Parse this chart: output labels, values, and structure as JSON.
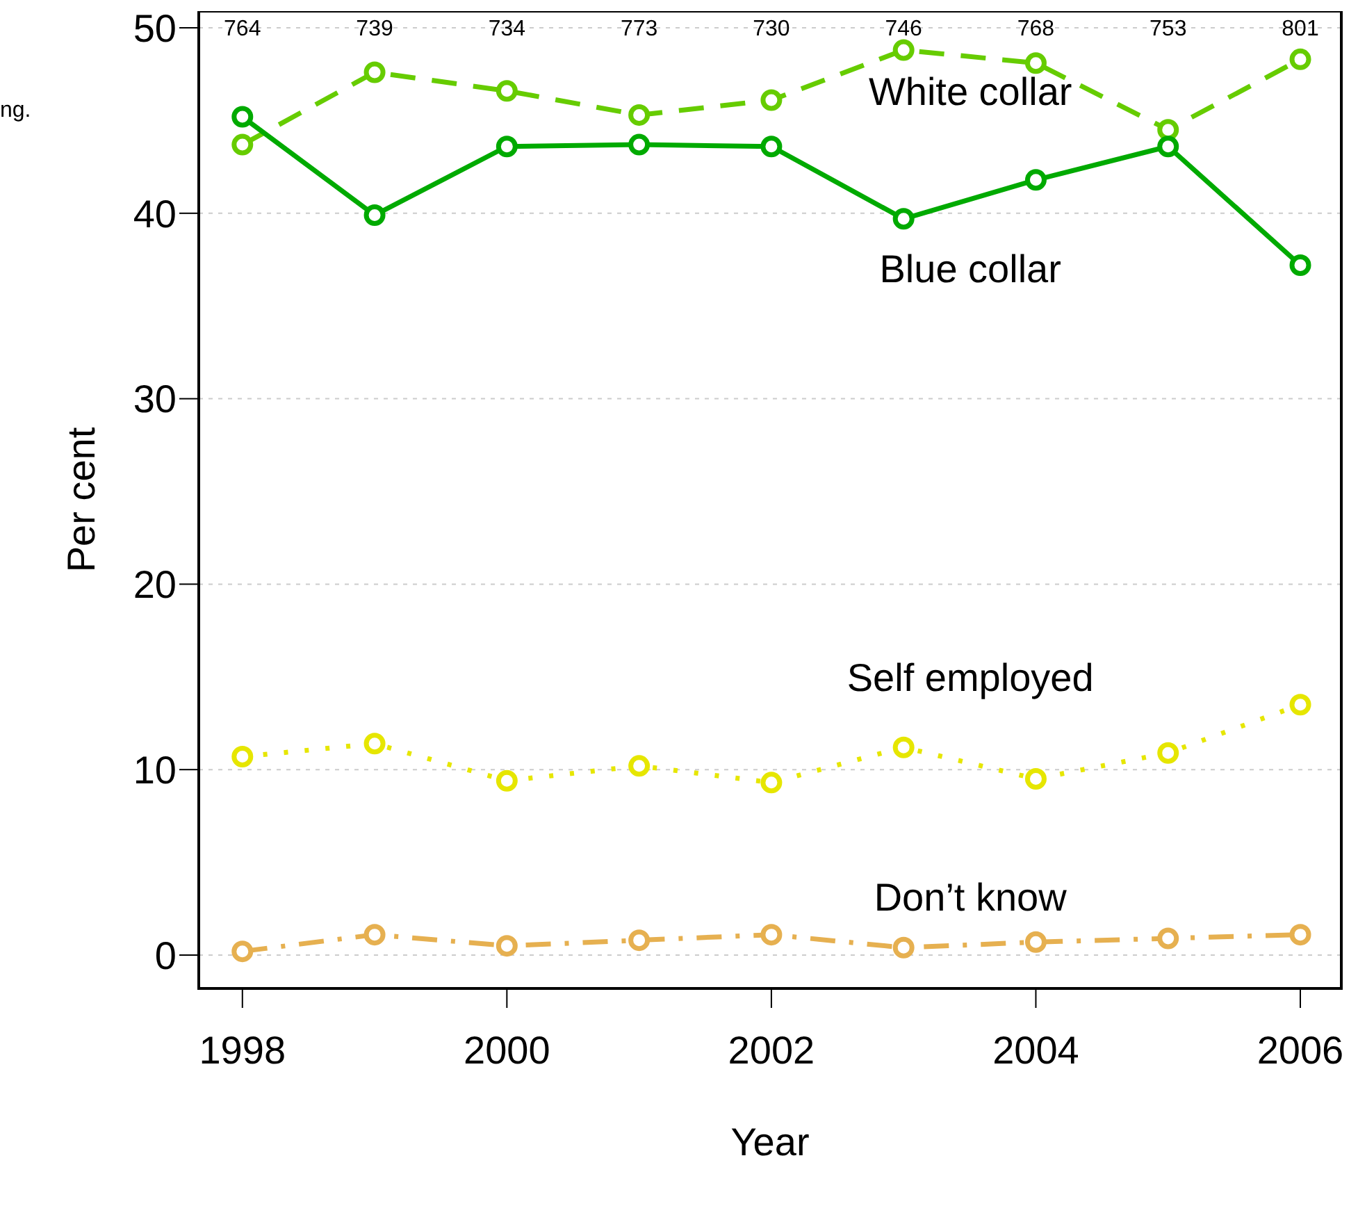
{
  "chart_data": {
    "type": "line",
    "xlabel": "Year",
    "ylabel": "Per cent",
    "x": [
      1998,
      1999,
      2000,
      2001,
      2002,
      2003,
      2004,
      2005,
      2006
    ],
    "xlim": [
      1997.67,
      2006.31
    ],
    "xticks": [
      1998,
      2000,
      2002,
      2004,
      2006
    ],
    "ylim": [
      -1.8,
      50.9
    ],
    "yticks": [
      0,
      10,
      20,
      30,
      40,
      50
    ],
    "grid": "y",
    "marker": "circle",
    "legend": false,
    "series": [
      {
        "name": "White collar",
        "color": "#66cc00",
        "line_style": "dashed",
        "values": [
          43.7,
          47.6,
          46.6,
          45.3,
          46.1,
          48.8,
          48.1,
          44.5,
          48.3
        ]
      },
      {
        "name": "Blue collar",
        "color": "#00aa00",
        "line_style": "solid",
        "values": [
          45.2,
          39.9,
          43.6,
          43.7,
          43.6,
          39.7,
          41.8,
          43.6,
          37.2
        ]
      },
      {
        "name": "Self employed",
        "color": "#e6e600",
        "line_style": "dotted",
        "values": [
          10.7,
          11.4,
          9.4,
          10.2,
          9.3,
          11.2,
          9.5,
          10.9,
          13.5
        ]
      },
      {
        "name": "Don’t know",
        "color": "#e6b050",
        "line_style": "dashdot",
        "values": [
          0.2,
          1.1,
          0.5,
          0.8,
          1.1,
          0.4,
          0.7,
          0.9,
          1.1
        ]
      }
    ],
    "annotations": [
      "ng.",
      "764",
      "739",
      "734",
      "773",
      "730",
      "746",
      "768",
      "753",
      "801"
    ]
  }
}
